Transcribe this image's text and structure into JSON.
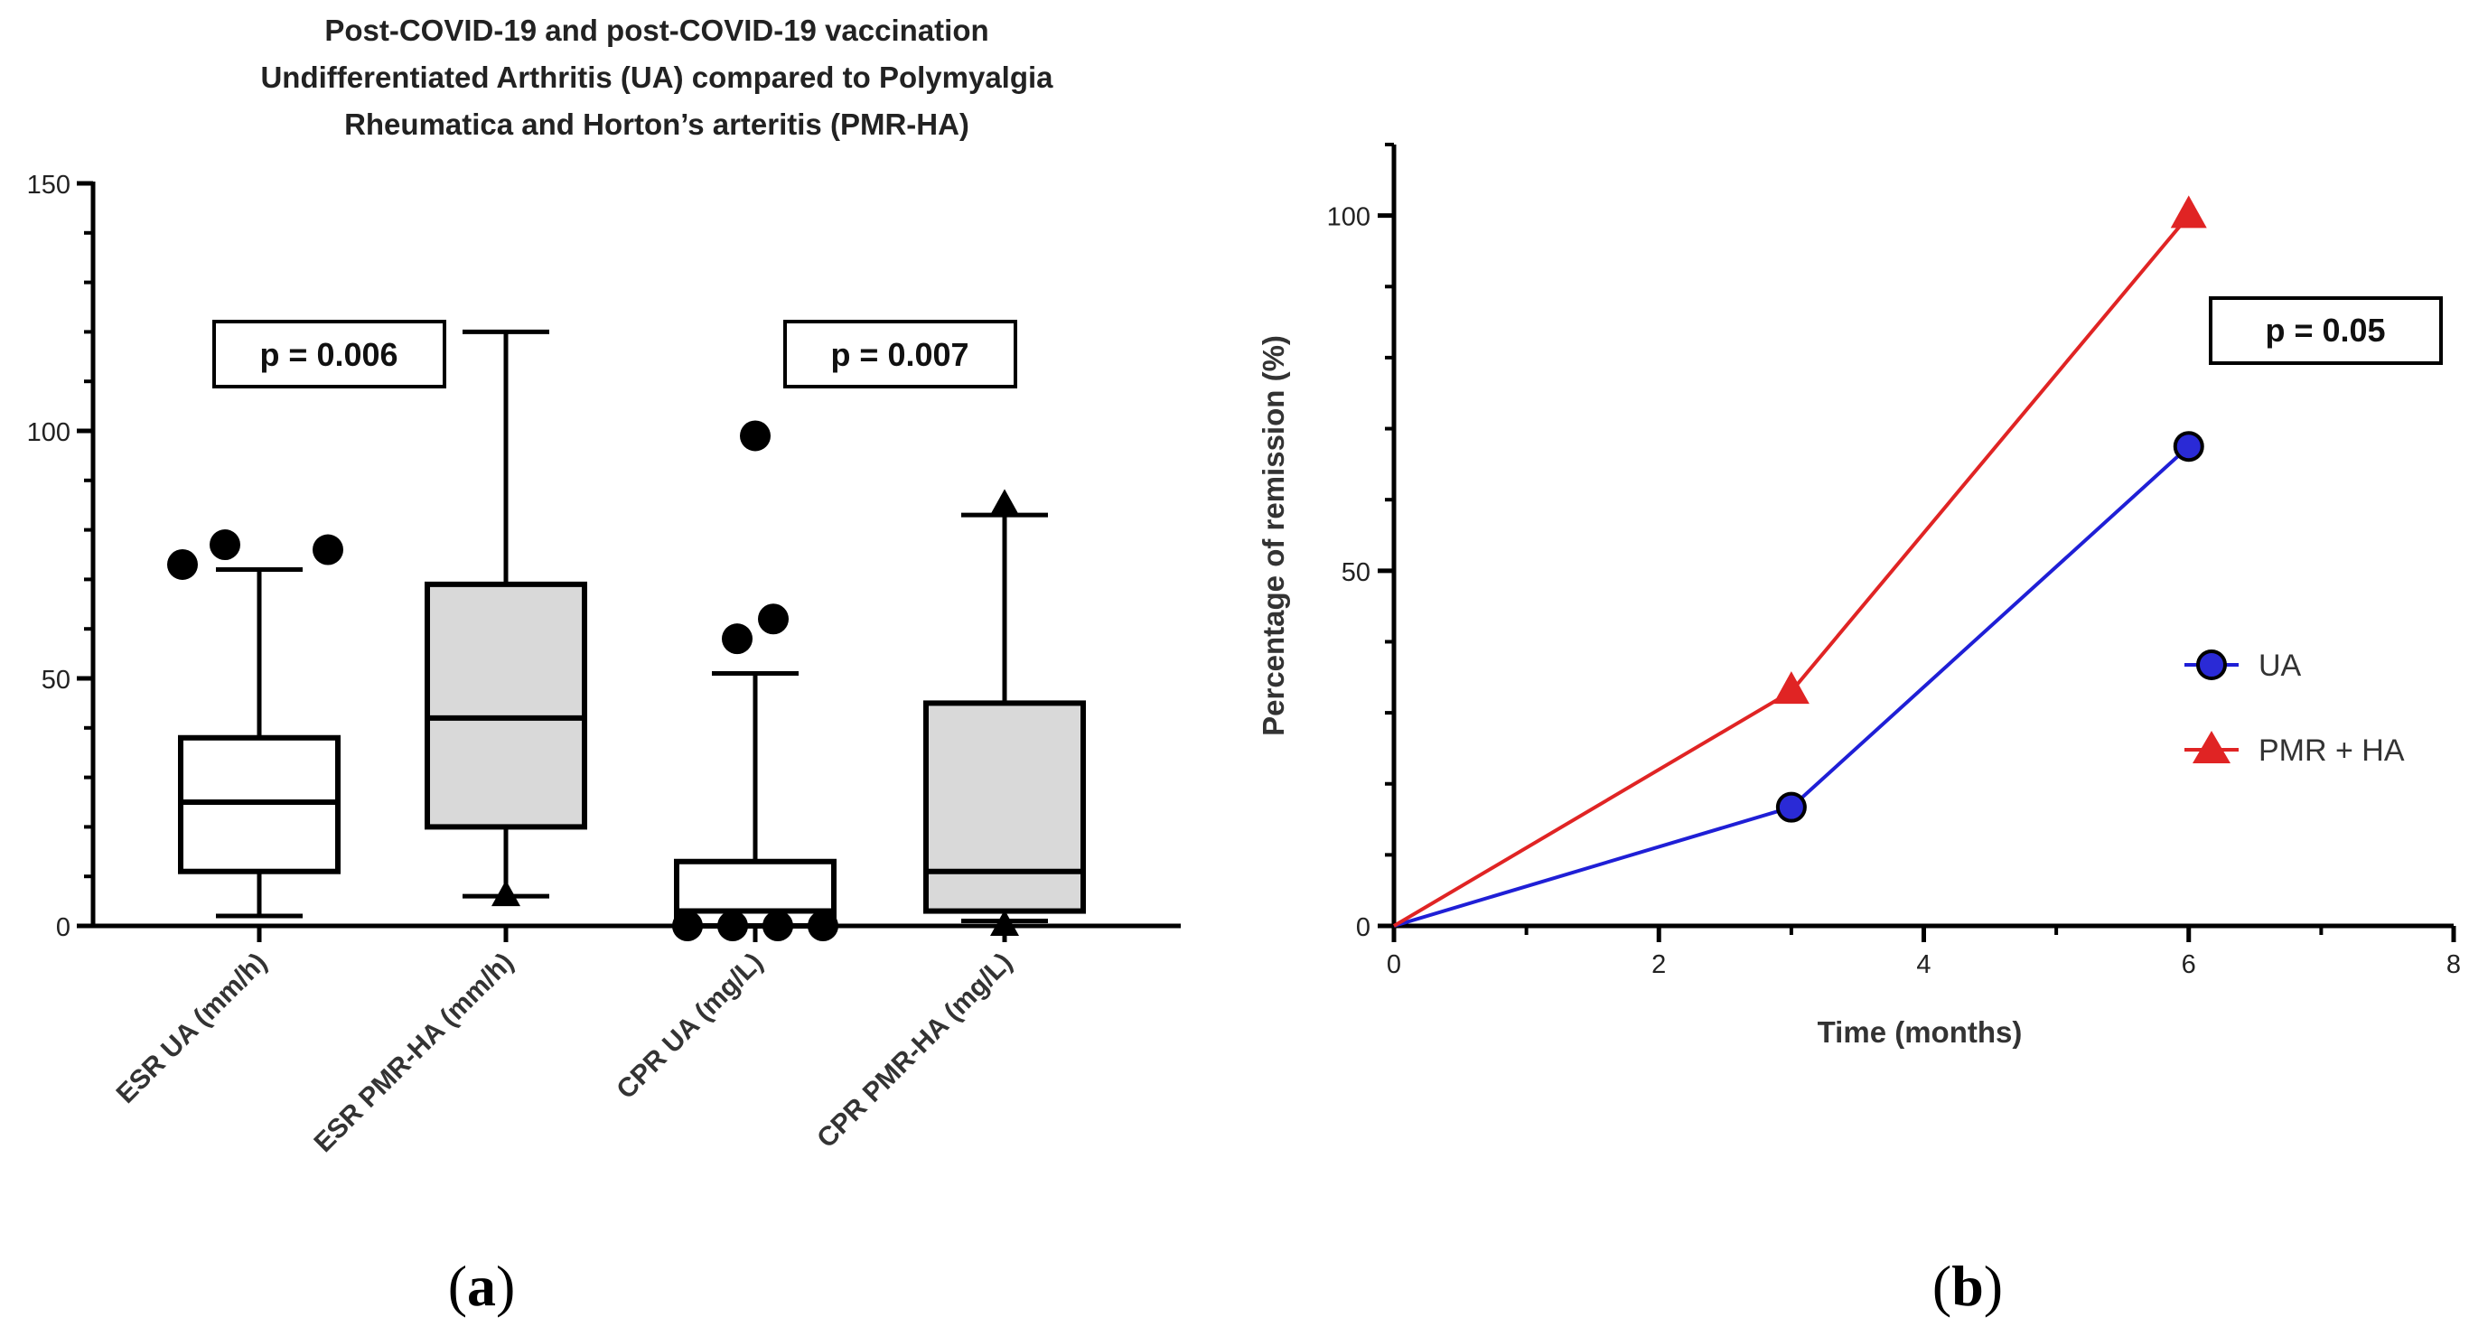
{
  "chart_data": [
    {
      "panel": "a",
      "type": "box",
      "title_lines": [
        "Post-COVID-19 and post-COVID-19 vaccination",
        "Undifferentiated Arthritis (UA) compared to Polymyalgia",
        "Rheumatica and Horton’s arteritis (PMR-HA)"
      ],
      "ylim": [
        0,
        150
      ],
      "yticks": [
        0,
        50,
        100,
        150
      ],
      "boxes": [
        {
          "label": "ESR UA (mm/h)",
          "min": 2,
          "q1": 11,
          "median": 25,
          "q3": 38,
          "max": 72,
          "fill": "#ffffff",
          "marker": "circle",
          "outliers": [
            73,
            77,
            76
          ]
        },
        {
          "label": "ESR PMR-HA (mm/h)",
          "min": 6,
          "q1": 20,
          "median": 42,
          "q3": 69,
          "max": 120,
          "fill": "#d9d9d9",
          "marker": "triangle",
          "outliers": [
            6
          ]
        },
        {
          "label": "CPR UA (mg/L)",
          "min": 0,
          "q1": 0,
          "median": 3,
          "q3": 13,
          "max": 51,
          "fill": "#ffffff",
          "marker": "circle",
          "outliers": [
            0,
            0,
            0,
            0,
            58,
            62,
            99
          ]
        },
        {
          "label": "CPR PMR-HA (mg/L)",
          "min": 1,
          "q1": 3,
          "median": 11,
          "q3": 45,
          "max": 83,
          "fill": "#d9d9d9",
          "marker": "triangle",
          "outliers": [
            85,
            0
          ]
        }
      ],
      "annotations": [
        {
          "text": "p = 0.006"
        },
        {
          "text": "p = 0.007"
        }
      ],
      "panel_label": {
        "open": "(",
        "letter": "a",
        "close": ")"
      }
    },
    {
      "panel": "b",
      "type": "line",
      "xlabel": "Time (months)",
      "ylabel": "Percentage of remission (%)",
      "xlim": [
        0,
        8
      ],
      "ylim": [
        0,
        110
      ],
      "xticks": [
        0,
        2,
        4,
        6,
        8
      ],
      "yticks": [
        0,
        50,
        100
      ],
      "series": [
        {
          "name": "UA",
          "color": "#1f1fd6",
          "marker": "circle",
          "marker_fill": "#2a2ad6",
          "x": [
            0,
            3,
            6
          ],
          "y": [
            0,
            16.7,
            67.5
          ]
        },
        {
          "name": "PMR + HA",
          "color": "#e02424",
          "marker": "triangle",
          "marker_fill": "#e02424",
          "x": [
            0,
            3,
            6
          ],
          "y": [
            0,
            33,
            100
          ]
        }
      ],
      "annotation": {
        "text": "p = 0.05"
      },
      "panel_label": {
        "open": "(",
        "letter": "b",
        "close": ")"
      }
    }
  ]
}
